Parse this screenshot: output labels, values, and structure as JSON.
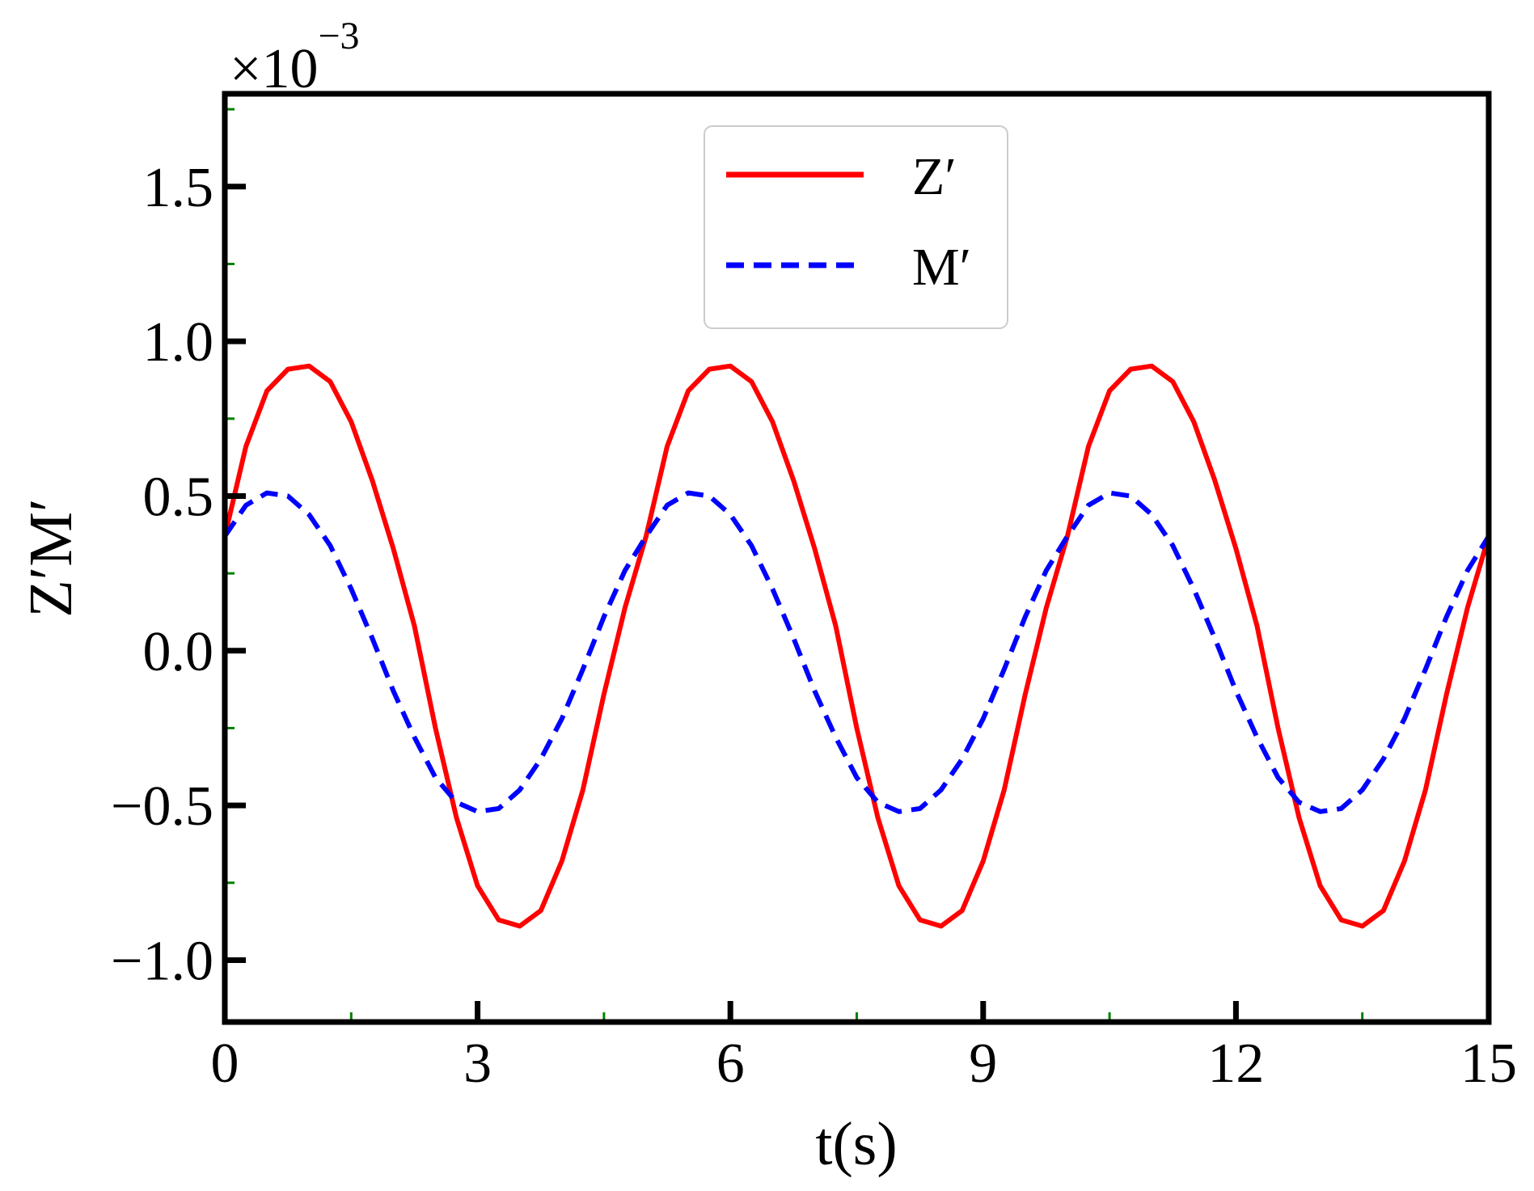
{
  "chart_data": {
    "type": "line",
    "xlabel": "t(s)",
    "ylabel": "Z′M′",
    "multiplier": {
      "base": "×10",
      "exponent": "−3"
    },
    "xlim": [
      0,
      15
    ],
    "ylim": [
      -1.2,
      1.8
    ],
    "x_ticks": [
      0,
      3,
      6,
      9,
      12,
      15
    ],
    "x_tick_labels": [
      "0",
      "3",
      "6",
      "9",
      "12",
      "15"
    ],
    "x_minor_ticks": [
      1.5,
      4.5,
      7.5,
      10.5,
      13.5
    ],
    "y_ticks": [
      -1.0,
      -0.5,
      0.0,
      0.5,
      1.0,
      1.5
    ],
    "y_tick_labels": [
      "−1.0",
      "−0.5",
      "0.0",
      "0.5",
      "1.0",
      "1.5"
    ],
    "y_minor_ticks": [
      -0.75,
      -0.25,
      0.25,
      0.75,
      1.25,
      1.75
    ],
    "grid": false,
    "legend_position": "top-center",
    "colors": {
      "major_tick": "#000000",
      "minor_tick": "#008000",
      "legend_border": "#cccccc"
    },
    "series": [
      {
        "name": "Z′",
        "color": "#ff0000",
        "style": "solid",
        "x": [
          0,
          0.25,
          0.5,
          0.75,
          1.0,
          1.25,
          1.5,
          1.75,
          2.0,
          2.25,
          2.5,
          2.75,
          3.0,
          3.25,
          3.5,
          3.75,
          4.0,
          4.25,
          4.5,
          4.75,
          5.0,
          5.25,
          5.5,
          5.75,
          6.0,
          6.25,
          6.5,
          6.75,
          7.0,
          7.25,
          7.5,
          7.75,
          8.0,
          8.25,
          8.5,
          8.75,
          9.0,
          9.25,
          9.5,
          9.75,
          10.0,
          10.25,
          10.5,
          10.75,
          11.0,
          11.25,
          11.5,
          11.75,
          12.0,
          12.25,
          12.5,
          12.75,
          13.0,
          13.25,
          13.5,
          13.75,
          14.0,
          14.25,
          14.5,
          14.75,
          15.0
        ],
        "values": [
          0.37,
          0.66,
          0.84,
          0.91,
          0.92,
          0.87,
          0.74,
          0.55,
          0.33,
          0.08,
          -0.25,
          -0.54,
          -0.76,
          -0.87,
          -0.89,
          -0.84,
          -0.68,
          -0.45,
          -0.14,
          0.14,
          0.37,
          0.66,
          0.84,
          0.91,
          0.92,
          0.87,
          0.74,
          0.55,
          0.33,
          0.08,
          -0.25,
          -0.54,
          -0.76,
          -0.87,
          -0.89,
          -0.84,
          -0.68,
          -0.45,
          -0.14,
          0.14,
          0.37,
          0.66,
          0.84,
          0.91,
          0.92,
          0.87,
          0.74,
          0.55,
          0.33,
          0.08,
          -0.25,
          -0.54,
          -0.76,
          -0.87,
          -0.89,
          -0.84,
          -0.68,
          -0.45,
          -0.14,
          0.14,
          0.37
        ]
      },
      {
        "name": "M′",
        "color": "#0000ff",
        "style": "dashed",
        "x": [
          0,
          0.25,
          0.5,
          0.75,
          1.0,
          1.25,
          1.5,
          1.75,
          2.0,
          2.25,
          2.5,
          2.75,
          3.0,
          3.25,
          3.5,
          3.75,
          4.0,
          4.25,
          4.5,
          4.75,
          5.0,
          5.25,
          5.5,
          5.75,
          6.0,
          6.25,
          6.5,
          6.75,
          7.0,
          7.25,
          7.5,
          7.75,
          8.0,
          8.25,
          8.5,
          8.75,
          9.0,
          9.25,
          9.5,
          9.75,
          10.0,
          10.25,
          10.5,
          10.75,
          11.0,
          11.25,
          11.5,
          11.75,
          12.0,
          12.25,
          12.5,
          12.75,
          13.0,
          13.25,
          13.5,
          13.75,
          14.0,
          14.25,
          14.5,
          14.75,
          15.0
        ],
        "values": [
          0.37,
          0.47,
          0.51,
          0.5,
          0.44,
          0.34,
          0.2,
          0.04,
          -0.13,
          -0.28,
          -0.41,
          -0.49,
          -0.52,
          -0.51,
          -0.45,
          -0.35,
          -0.22,
          -0.06,
          0.11,
          0.26,
          0.37,
          0.47,
          0.51,
          0.5,
          0.44,
          0.34,
          0.2,
          0.04,
          -0.13,
          -0.28,
          -0.41,
          -0.49,
          -0.52,
          -0.51,
          -0.45,
          -0.35,
          -0.22,
          -0.06,
          0.11,
          0.26,
          0.37,
          0.47,
          0.51,
          0.5,
          0.44,
          0.34,
          0.2,
          0.04,
          -0.13,
          -0.28,
          -0.41,
          -0.49,
          -0.52,
          -0.51,
          -0.45,
          -0.35,
          -0.22,
          -0.06,
          0.11,
          0.26,
          0.37
        ]
      }
    ]
  }
}
